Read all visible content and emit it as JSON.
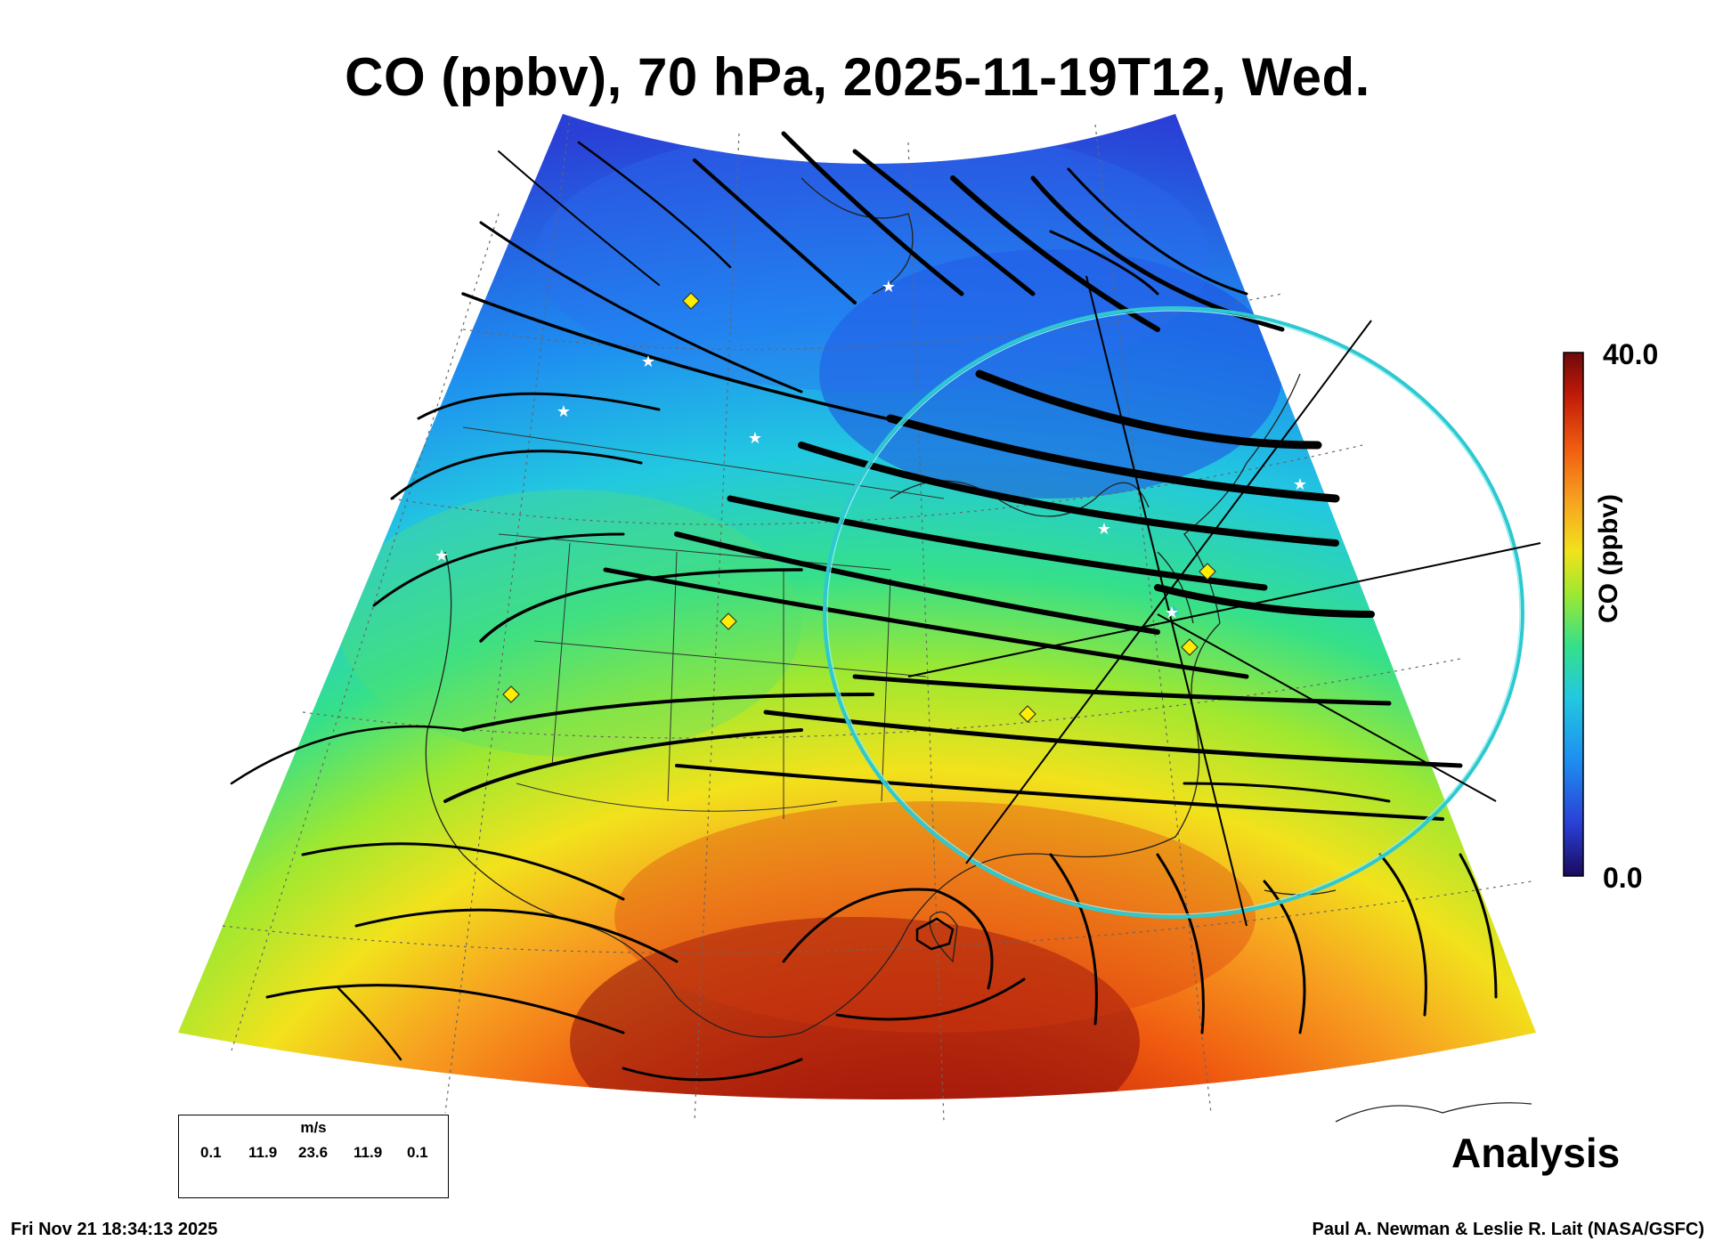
{
  "title": "CO (ppbv), 70 hPa, 2025-11-19T12, Wed.",
  "colorbar": {
    "label": "CO (ppbv)",
    "max_label": "40.0",
    "min_label": "0.0",
    "range": [
      0.0,
      40.0
    ],
    "colors": [
      "#1a0a5e",
      "#2a3fd6",
      "#1e8ef0",
      "#22c8e0",
      "#35e08a",
      "#9fe830",
      "#f2e21c",
      "#f7a020",
      "#f05a10",
      "#c01a08",
      "#6e0a0a"
    ]
  },
  "wind_legend": {
    "unit": "m/s",
    "values": [
      "0.1",
      "11.9",
      "23.6",
      "11.9",
      "0.1"
    ]
  },
  "product_label": "Analysis",
  "timestamp": "Fri Nov 21 18:34:13 2025",
  "credit": "Paul A. Newman & Leslie R. Lait (NASA/GSFC)",
  "markers": {
    "white_star": "white-star",
    "yellow_diamond": "yellow-diamond",
    "cyan_circle": "#2ec8d0"
  }
}
